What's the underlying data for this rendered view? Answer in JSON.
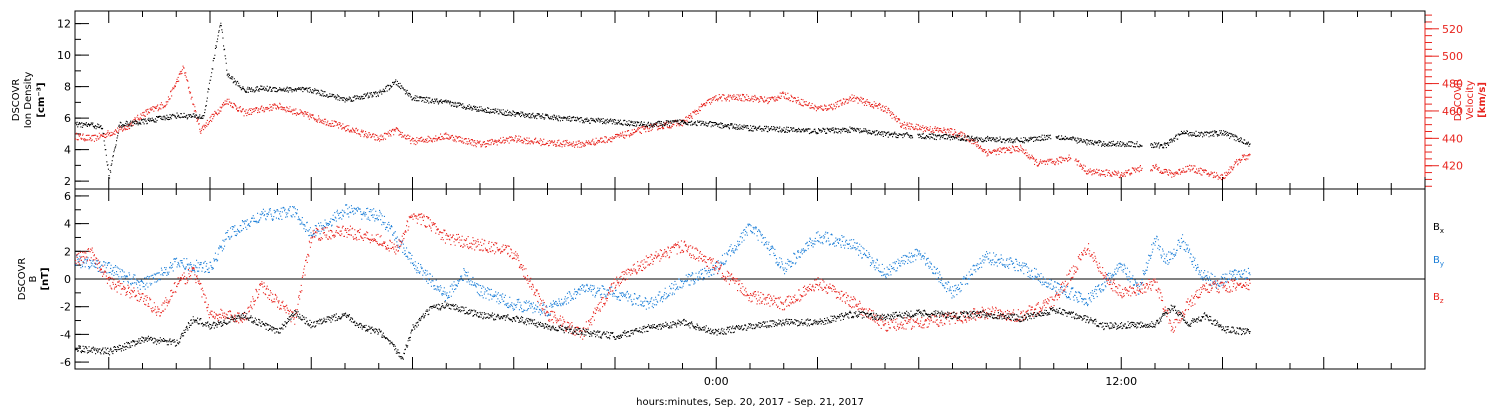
{
  "colors": {
    "black": "#000000",
    "red": "#e8241e",
    "blue": "#1c7fd8"
  },
  "footer": {
    "xlabel": "hours:minutes, Sep. 20, 2017 - Sep. 21, 2017"
  },
  "chart_data": [
    {
      "type": "scatter",
      "panel": "plasma",
      "ylabel_left": [
        "DSCOVR",
        "Ion Density",
        "[cm⁻³]"
      ],
      "ylabel_right": [
        "DSCOVR",
        "Velocity",
        "[km/s]"
      ],
      "x_unit": "hours relative to Sep. 21, 2017 0:00",
      "xlim": [
        -19,
        21
      ],
      "x_ticks": [
        {
          "value": 0,
          "label": "0:00"
        },
        {
          "value": 12,
          "label": "12:00"
        }
      ],
      "ylim_left": [
        1.5,
        12.8
      ],
      "ylim_right": [
        403,
        533
      ],
      "yticks_left": [
        "2",
        "4",
        "6",
        "8",
        "10",
        "12"
      ],
      "yticks_right": [
        "420",
        "440",
        "460",
        "480",
        "500",
        "520"
      ],
      "series": [
        {
          "axis": "left",
          "color": "black",
          "x": [
            -19,
            -18.5,
            -18.2,
            -18,
            -17.7,
            -17,
            -16,
            -15.2,
            -14.7,
            -14.5,
            -14,
            -13.5,
            -12,
            -11,
            -10,
            -9.5,
            -9,
            -8,
            -7,
            -6,
            -5,
            -4,
            -3,
            -2,
            -1,
            0,
            1,
            2,
            3,
            4,
            5,
            6,
            7,
            8,
            9,
            10,
            11,
            11.5,
            12,
            13,
            13.3,
            13.8,
            14.5,
            15,
            15.8
          ],
          "y": [
            5.6,
            5.6,
            5.4,
            2.3,
            5.6,
            5.8,
            6.2,
            6.1,
            12.2,
            8.8,
            7.8,
            7.9,
            7.8,
            7.2,
            7.6,
            8.3,
            7.3,
            7,
            6.6,
            6.3,
            6.1,
            5.9,
            5.8,
            5.6,
            5.8,
            5.6,
            5.4,
            5.3,
            5.2,
            5.3,
            5,
            4.9,
            4.8,
            4.7,
            4.6,
            4.9,
            4.5,
            4.4,
            4.4,
            4.3,
            4.3,
            5.1,
            5,
            5.1,
            4.4
          ]
        },
        {
          "axis": "right",
          "color": "red",
          "x": [
            -19,
            -18.5,
            -17.5,
            -17,
            -16.3,
            -15.8,
            -15.3,
            -14.5,
            -14,
            -13,
            -12,
            -11,
            -10,
            -9.5,
            -9,
            -8,
            -7,
            -6,
            -5,
            -4,
            -3,
            -2,
            -1,
            -0.3,
            0,
            1,
            1.5,
            2,
            3,
            3.5,
            4,
            5,
            5.5,
            6,
            7,
            7.5,
            8,
            9,
            9.5,
            10,
            10.5,
            11,
            12,
            12.5,
            13,
            13.5,
            14,
            14.5,
            15,
            15.5,
            15.8
          ],
          "y": [
            442,
            440,
            448,
            458,
            466,
            492,
            446,
            468,
            459,
            464,
            456,
            448,
            440,
            446,
            438,
            442,
            436,
            440,
            437,
            436,
            441,
            448,
            452,
            466,
            470,
            470,
            468,
            472,
            462,
            464,
            470,
            462,
            450,
            448,
            445,
            440,
            430,
            433,
            422,
            423,
            427,
            416,
            414,
            418,
            419,
            414,
            419,
            415,
            412,
            425,
            428
          ]
        }
      ]
    },
    {
      "type": "scatter",
      "panel": "magnetic-field",
      "ylabel_left": [
        "DSCOVR",
        "B",
        "[nT]"
      ],
      "x_unit": "hours relative to Sep. 21, 2017 0:00",
      "xlim": [
        -19,
        21
      ],
      "x_ticks": [
        {
          "value": 0,
          "label": "0:00"
        },
        {
          "value": 12,
          "label": "12:00"
        }
      ],
      "ylim": [
        -6.5,
        6.5
      ],
      "yticks": [
        "-6",
        "-4",
        "-2",
        "0",
        "2",
        "4",
        "6"
      ],
      "zero_line": true,
      "legend": {
        "placement": "right"
      },
      "series": [
        {
          "name": "B",
          "sub": "x",
          "color": "black",
          "x": [
            -19,
            -18,
            -17.5,
            -17,
            -16,
            -15.5,
            -15,
            -14,
            -13,
            -12.5,
            -12,
            -11,
            -10.5,
            -10,
            -9.3,
            -9,
            -8.5,
            -8,
            -7,
            -6,
            -5,
            -4,
            -3,
            -2,
            -1,
            0,
            1,
            2,
            3,
            4,
            5,
            6,
            7,
            8,
            9,
            10,
            11,
            11.5,
            12,
            13,
            13.5,
            14,
            14.5,
            15,
            15.8
          ],
          "y": [
            -5,
            -5.2,
            -4.8,
            -4.3,
            -4.6,
            -2.8,
            -3.4,
            -2.6,
            -3.8,
            -2.4,
            -3.3,
            -2.5,
            -3.5,
            -3.8,
            -5.6,
            -3.5,
            -2.2,
            -1.8,
            -2.6,
            -2.8,
            -3.4,
            -3.8,
            -4.1,
            -3.5,
            -3.1,
            -3.8,
            -3.4,
            -3.1,
            -3.1,
            -2.5,
            -2.7,
            -2.4,
            -2.6,
            -2.5,
            -2.8,
            -2.2,
            -2.9,
            -3.4,
            -3.3,
            -3.2,
            -2,
            -3.2,
            -2.6,
            -3.6,
            -3.8
          ]
        },
        {
          "name": "B",
          "sub": "y",
          "color": "blue",
          "x": [
            -19,
            -18,
            -17,
            -16,
            -15,
            -14.5,
            -13.5,
            -12.5,
            -12,
            -11,
            -10,
            -9.5,
            -9,
            -8.5,
            -8,
            -7.5,
            -7,
            -6,
            -5,
            -4,
            -3,
            -2,
            -1,
            0,
            1,
            1.5,
            2,
            3,
            4,
            5,
            6,
            7,
            8,
            9,
            10,
            11,
            12,
            12.5,
            13,
            13.3,
            13.8,
            14.3,
            14.8,
            15.3,
            15.8
          ],
          "y": [
            1.4,
            0.8,
            -0.4,
            1.2,
            0.8,
            3.2,
            4.6,
            4.9,
            3.3,
            5,
            4.6,
            3,
            1.2,
            0,
            -1.2,
            0.4,
            -0.8,
            -1.8,
            -2.2,
            -0.7,
            -1,
            -1.8,
            -0.2,
            0.8,
            3.8,
            2.5,
            0.8,
            3.1,
            2.6,
            0.5,
            2,
            -1,
            1.6,
            1,
            -0.5,
            -1.5,
            1,
            -0.8,
            3,
            1.3,
            2.8,
            0.5,
            -0.2,
            0.3,
            0.5
          ]
        },
        {
          "name": "B",
          "sub": "z",
          "color": "red",
          "x": [
            -19,
            -18.5,
            -18,
            -17.5,
            -17,
            -16.5,
            -16,
            -15.5,
            -15,
            -14.5,
            -14,
            -13.5,
            -12.5,
            -12,
            -11,
            -10,
            -9.5,
            -9,
            -8.5,
            -8,
            -7,
            -6,
            -5,
            -4,
            -3,
            -2,
            -1,
            0,
            1,
            2,
            3,
            4,
            5,
            6,
            7,
            8,
            9,
            10,
            11,
            11.5,
            12,
            13,
            13.5,
            14,
            14.5,
            15,
            15.8
          ],
          "y": [
            1.4,
            1.9,
            -0.2,
            -0.8,
            -1.3,
            -2.4,
            -0.4,
            0.6,
            -2.5,
            -2.6,
            -2.8,
            -0.4,
            -2.9,
            3.2,
            3.5,
            2.9,
            2.1,
            4.7,
            4,
            3,
            2.5,
            1.9,
            -2.5,
            -4,
            -0.2,
            1.4,
            2.4,
            0.9,
            -1.2,
            -1.8,
            -0.3,
            -1.6,
            -3.3,
            -3.1,
            -2.8,
            -2.4,
            -2.6,
            -1.6,
            2.4,
            0.2,
            -1,
            -0.3,
            -3.5,
            -1.7,
            -0.6,
            -0.5,
            -0.4
          ]
        }
      ]
    }
  ]
}
